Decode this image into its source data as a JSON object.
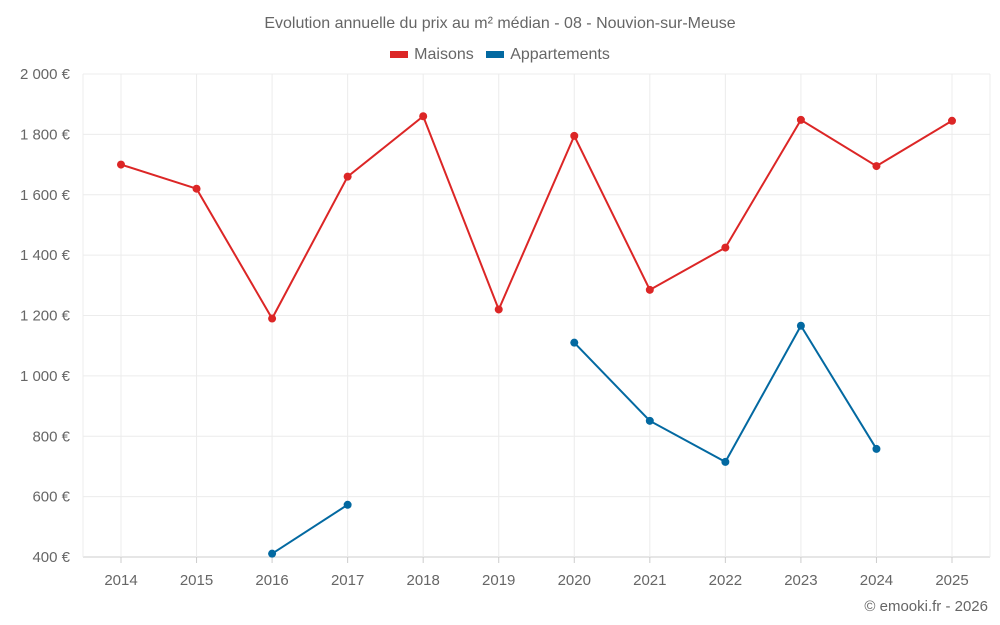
{
  "chart_data": {
    "type": "line",
    "title": "Evolution annuelle du prix au m² médian - 08 - Nouvion-sur-Meuse",
    "xlabel": "",
    "ylabel": "",
    "categories": [
      "2014",
      "2015",
      "2016",
      "2017",
      "2018",
      "2019",
      "2020",
      "2021",
      "2022",
      "2023",
      "2024",
      "2025"
    ],
    "ylim": [
      400,
      2000
    ],
    "yticks": [
      400,
      600,
      800,
      1000,
      1200,
      1400,
      1600,
      1800,
      2000
    ],
    "ytick_labels": [
      "400 €",
      "600 €",
      "800 €",
      "1 000 €",
      "1 200 €",
      "1 400 €",
      "1 600 €",
      "1 800 €",
      "2 000 €"
    ],
    "grid": true,
    "legend_position": "top-center",
    "series": [
      {
        "name": "Maisons",
        "color": "#dc2626",
        "values": [
          1700,
          1620,
          1190,
          1660,
          1860,
          1220,
          1795,
          1285,
          1425,
          1848,
          1695,
          1845
        ]
      },
      {
        "name": "Appartements",
        "color": "#0369a1",
        "values": [
          null,
          null,
          411,
          573,
          null,
          null,
          1110,
          851,
          715,
          1166,
          758,
          null
        ]
      }
    ]
  },
  "credit": "© emooki.fr - 2026"
}
